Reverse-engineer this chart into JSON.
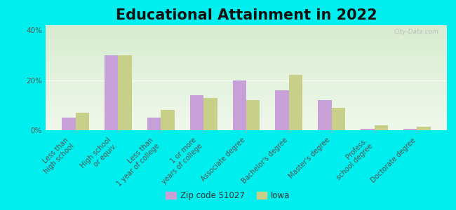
{
  "title": "Educational Attainment in 2022",
  "categories": [
    "Less than\nhigh school",
    "High school\nor equiv.",
    "Less than\n1 year of college",
    "1 or more\nyears of college",
    "Associate degree",
    "Bachelor's degree",
    "Master's degree",
    "Profess.\nschool degree",
    "Doctorate degree"
  ],
  "zip_values": [
    5,
    30,
    5,
    14,
    20,
    16,
    12,
    0.5,
    0.5
  ],
  "iowa_values": [
    7,
    30,
    8,
    13,
    12,
    22,
    9,
    2,
    1.5
  ],
  "zip_color": "#c8a0d8",
  "iowa_color": "#c8cf88",
  "background_color": "#00eeee",
  "plot_bg_top": "#d8ecd0",
  "plot_bg_bottom": "#f0f8ec",
  "ylim": [
    0,
    42
  ],
  "yticks": [
    0,
    20,
    40
  ],
  "ytick_labels": [
    "0%",
    "20%",
    "40%"
  ],
  "legend_zip_label": "Zip code 51027",
  "legend_iowa_label": "Iowa",
  "watermark": "City-Data.com",
  "title_fontsize": 15,
  "tick_fontsize": 7,
  "bar_width": 0.32
}
